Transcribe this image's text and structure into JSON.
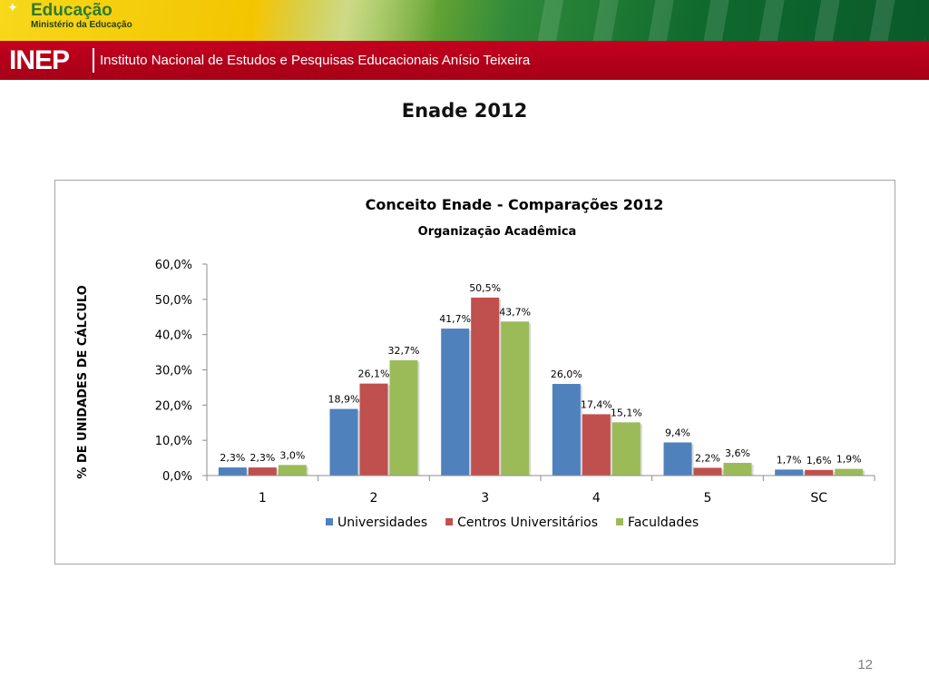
{
  "header": {
    "brand_title": "Educação",
    "brand_subtitle": "Ministério da Educação",
    "inep_logo": "INEP",
    "inep_name": "Instituto Nacional de Estudos e Pesquisas Educacionais Anísio Teixeira"
  },
  "page": {
    "title": "Enade 2012",
    "number": "12"
  },
  "chart_data": {
    "type": "bar",
    "title": "Conceito Enade - Comparações 2012",
    "subtitle": "Organização Acadêmica",
    "xlabel": "",
    "ylabel": "% DE UNIDADES DE CÁLCULO",
    "categories": [
      "1",
      "2",
      "3",
      "4",
      "5",
      "SC"
    ],
    "ylim": [
      0,
      60
    ],
    "yticks": [
      0,
      10,
      20,
      30,
      40,
      50,
      60
    ],
    "ytick_labels": [
      "0,0%",
      "10,0%",
      "20,0%",
      "30,0%",
      "40,0%",
      "50,0%",
      "60,0%"
    ],
    "legend_position": "bottom",
    "grid": false,
    "series": [
      {
        "name": "Universidades",
        "color": "#4f81bd",
        "values": [
          2.3,
          18.9,
          41.7,
          26.0,
          9.4,
          1.7
        ],
        "labels": [
          "2,3%",
          "18,9%",
          "41,7%",
          "26,0%",
          "9,4%",
          "1,7%"
        ]
      },
      {
        "name": "Centros Universitários",
        "color": "#c0504d",
        "values": [
          2.3,
          26.1,
          50.5,
          17.4,
          2.2,
          1.6
        ],
        "labels": [
          "2,3%",
          "26,1%",
          "50,5%",
          "17,4%",
          "2,2%",
          "1,6%"
        ]
      },
      {
        "name": "Faculdades",
        "color": "#9bbb59",
        "values": [
          3.0,
          32.7,
          43.7,
          15.1,
          3.6,
          1.9
        ],
        "labels": [
          "3,0%",
          "32,7%",
          "43,7%",
          "15,1%",
          "3,6%",
          "1,9%"
        ]
      }
    ]
  },
  "icons": {
    "brand_star": "star-icon"
  }
}
